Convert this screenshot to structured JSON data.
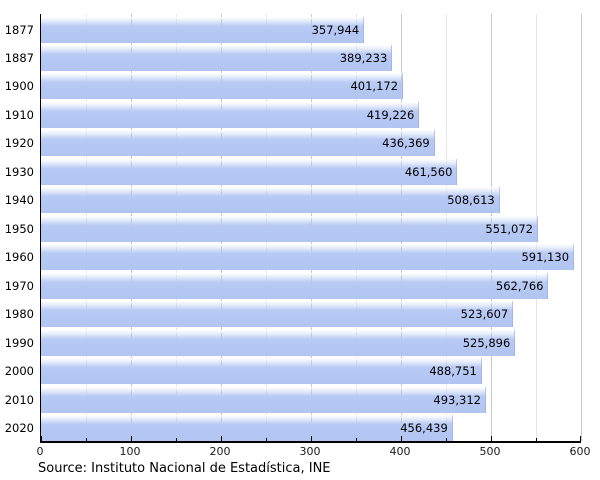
{
  "chart_data": {
    "type": "bar",
    "orientation": "horizontal",
    "title": "",
    "xlabel": "",
    "ylabel": "",
    "categories": [
      "1877",
      "1887",
      "1900",
      "1910",
      "1920",
      "1930",
      "1940",
      "1950",
      "1960",
      "1970",
      "1980",
      "1990",
      "2000",
      "2010",
      "2020"
    ],
    "values": [
      357944,
      389233,
      401172,
      419226,
      436369,
      461560,
      508613,
      551072,
      591130,
      562766,
      523607,
      525896,
      488751,
      493312,
      456439
    ],
    "value_labels": [
      "357,944",
      "389,233",
      "401,172",
      "419,226",
      "436,369",
      "461,560",
      "508,613",
      "551,072",
      "591,130",
      "562,766",
      "523,607",
      "525,896",
      "488,751",
      "493,312",
      "456,439"
    ],
    "xlim": [
      0,
      600000
    ],
    "x_major_ticks": [
      0,
      100000,
      200000,
      300000,
      400000,
      500000,
      600000
    ],
    "x_major_tick_labels": [
      "0",
      "100",
      "200",
      "300",
      "400",
      "500",
      "600"
    ],
    "x_minor_step": 50000,
    "grid": true,
    "legend_position": "none",
    "bar_color": "#b5c8f3",
    "grid_major_color": "#c8c8c8",
    "grid_minor_color": "#e6e6e6",
    "axis_color": "#000000"
  },
  "footer": {
    "source": "Source: Instituto Nacional de Estadística, INE"
  }
}
